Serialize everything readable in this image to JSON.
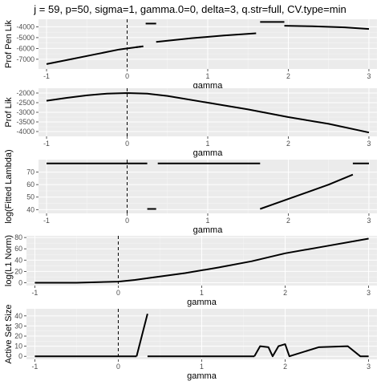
{
  "title": "j = 59, p=50, sigma=1, gamma.0=0, delta=3, q.str=full, CV.type=min",
  "chart_data": [
    {
      "type": "line",
      "ylabel": "Prof Pen Lik",
      "xlabel": "gamma",
      "xlim": [
        -1.1,
        3.1
      ],
      "ylim": [
        -7900,
        -3300
      ],
      "xticks": [
        -1,
        0,
        1,
        2,
        3
      ],
      "yticks": [
        -4000,
        -5000,
        -6000,
        -7000
      ],
      "vline": 0,
      "series": [
        {
          "x": [
            -1,
            -0.7,
            -0.4,
            -0.1,
            0,
            0.2
          ],
          "y": [
            -7450,
            -7000,
            -6550,
            -6100,
            -6000,
            -5800
          ]
        },
        {
          "x": [
            0.1,
            0.2
          ],
          "y": [
            -5900,
            -5800
          ]
        },
        {
          "x": [
            0.23,
            0.36
          ],
          "y": [
            -3700,
            -3700
          ]
        },
        {
          "x": [
            0.36,
            0.8,
            1.2,
            1.6
          ],
          "y": [
            -5400,
            -5050,
            -4800,
            -4600
          ]
        },
        {
          "x": [
            1.65,
            1.95
          ],
          "y": [
            -3550,
            -3550
          ]
        },
        {
          "x": [
            1.95,
            2.3,
            2.7,
            3.0
          ],
          "y": [
            -3900,
            -3950,
            -4050,
            -4200
          ]
        }
      ]
    },
    {
      "type": "line",
      "ylabel": "Prof Lik",
      "xlabel": "gamma",
      "xlim": [
        -1.1,
        3.1
      ],
      "ylim": [
        -4250,
        -1750
      ],
      "xticks": [
        -1,
        0,
        1,
        2,
        3
      ],
      "yticks": [
        -2000,
        -2500,
        -3000,
        -3500,
        -4000
      ],
      "vline": 0,
      "series": [
        {
          "x": [
            -1,
            -0.75,
            -0.5,
            -0.25,
            0,
            0.25,
            0.5,
            1,
            1.5,
            2,
            2.5,
            3
          ],
          "y": [
            -2400,
            -2250,
            -2120,
            -2030,
            -2000,
            -2030,
            -2150,
            -2500,
            -2850,
            -3250,
            -3600,
            -4050
          ]
        }
      ]
    },
    {
      "type": "line",
      "ylabel": "log(Fitted Lambda)",
      "xlabel": "gamma",
      "xlim": [
        -1.1,
        3.1
      ],
      "ylim": [
        37,
        80
      ],
      "xticks": [
        -1,
        0,
        1,
        2,
        3
      ],
      "yticks": [
        70,
        60,
        50,
        40
      ],
      "vline": 0,
      "series": [
        {
          "x": [
            -1,
            0.25
          ],
          "y": [
            77,
            77
          ]
        },
        {
          "x": [
            0.25,
            0.36
          ],
          "y": [
            40.5,
            40.5
          ]
        },
        {
          "x": [
            0.38,
            1.65
          ],
          "y": [
            77,
            77
          ]
        },
        {
          "x": [
            1.65,
            2.5,
            2.8
          ],
          "y": [
            40.5,
            60,
            68
          ]
        },
        {
          "x": [
            2.8,
            3.0
          ],
          "y": [
            77,
            77
          ]
        }
      ]
    },
    {
      "type": "line",
      "ylabel": "log(L1 Norm)",
      "xlabel": "gamma",
      "xlim": [
        -1.1,
        3.1
      ],
      "ylim": [
        -5,
        83
      ],
      "xticks": [
        -1,
        0,
        1,
        2,
        3
      ],
      "yticks": [
        80,
        60,
        40,
        20,
        0
      ],
      "vline": 0,
      "series": [
        {
          "x": [
            -1,
            -0.5,
            0,
            0.2,
            0.4,
            0.8,
            1.2,
            1.6,
            2.0,
            2.5,
            3.0
          ],
          "y": [
            0,
            0,
            2,
            5,
            9,
            17,
            27,
            38,
            52,
            65,
            78
          ]
        }
      ]
    },
    {
      "type": "line",
      "ylabel": "Active Set Size",
      "xlabel": "gamma",
      "xlim": [
        -1.1,
        3.1
      ],
      "ylim": [
        -3,
        47
      ],
      "xticks": [
        -1,
        0,
        1,
        2,
        3
      ],
      "yticks": [
        40,
        30,
        20,
        10,
        0
      ],
      "vline": 0,
      "series": [
        {
          "x": [
            -1,
            0.22
          ],
          "y": [
            0,
            0
          ]
        },
        {
          "x": [
            0.22,
            0.35
          ],
          "y": [
            0,
            42
          ]
        },
        {
          "x": [
            0.35,
            1.63
          ],
          "y": [
            0,
            0
          ]
        },
        {
          "x": [
            1.63,
            1.7,
            1.8,
            1.85,
            1.92,
            2.0,
            2.05,
            2.4,
            2.75,
            2.9,
            3.0
          ],
          "y": [
            0,
            10,
            9,
            0,
            10,
            12,
            0,
            9,
            10,
            0,
            0
          ]
        }
      ]
    }
  ]
}
